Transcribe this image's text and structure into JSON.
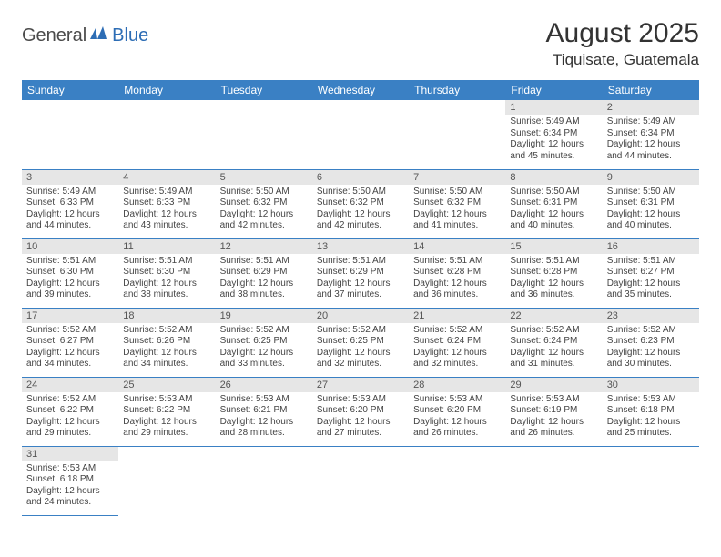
{
  "logo": {
    "part1": "General",
    "part2": "Blue"
  },
  "title": "August 2025",
  "location": "Tiquisate, Guatemala",
  "header_bg": "#3a80c4",
  "header_fg": "#ffffff",
  "daynum_bg": "#e6e6e6",
  "border_color": "#3a80c4",
  "columns": [
    "Sunday",
    "Monday",
    "Tuesday",
    "Wednesday",
    "Thursday",
    "Friday",
    "Saturday"
  ],
  "weeks": [
    [
      null,
      null,
      null,
      null,
      null,
      {
        "n": "1",
        "sr": "Sunrise: 5:49 AM",
        "ss": "Sunset: 6:34 PM",
        "dl": "Daylight: 12 hours and 45 minutes."
      },
      {
        "n": "2",
        "sr": "Sunrise: 5:49 AM",
        "ss": "Sunset: 6:34 PM",
        "dl": "Daylight: 12 hours and 44 minutes."
      }
    ],
    [
      {
        "n": "3",
        "sr": "Sunrise: 5:49 AM",
        "ss": "Sunset: 6:33 PM",
        "dl": "Daylight: 12 hours and 44 minutes."
      },
      {
        "n": "4",
        "sr": "Sunrise: 5:49 AM",
        "ss": "Sunset: 6:33 PM",
        "dl": "Daylight: 12 hours and 43 minutes."
      },
      {
        "n": "5",
        "sr": "Sunrise: 5:50 AM",
        "ss": "Sunset: 6:32 PM",
        "dl": "Daylight: 12 hours and 42 minutes."
      },
      {
        "n": "6",
        "sr": "Sunrise: 5:50 AM",
        "ss": "Sunset: 6:32 PM",
        "dl": "Daylight: 12 hours and 42 minutes."
      },
      {
        "n": "7",
        "sr": "Sunrise: 5:50 AM",
        "ss": "Sunset: 6:32 PM",
        "dl": "Daylight: 12 hours and 41 minutes."
      },
      {
        "n": "8",
        "sr": "Sunrise: 5:50 AM",
        "ss": "Sunset: 6:31 PM",
        "dl": "Daylight: 12 hours and 40 minutes."
      },
      {
        "n": "9",
        "sr": "Sunrise: 5:50 AM",
        "ss": "Sunset: 6:31 PM",
        "dl": "Daylight: 12 hours and 40 minutes."
      }
    ],
    [
      {
        "n": "10",
        "sr": "Sunrise: 5:51 AM",
        "ss": "Sunset: 6:30 PM",
        "dl": "Daylight: 12 hours and 39 minutes."
      },
      {
        "n": "11",
        "sr": "Sunrise: 5:51 AM",
        "ss": "Sunset: 6:30 PM",
        "dl": "Daylight: 12 hours and 38 minutes."
      },
      {
        "n": "12",
        "sr": "Sunrise: 5:51 AM",
        "ss": "Sunset: 6:29 PM",
        "dl": "Daylight: 12 hours and 38 minutes."
      },
      {
        "n": "13",
        "sr": "Sunrise: 5:51 AM",
        "ss": "Sunset: 6:29 PM",
        "dl": "Daylight: 12 hours and 37 minutes."
      },
      {
        "n": "14",
        "sr": "Sunrise: 5:51 AM",
        "ss": "Sunset: 6:28 PM",
        "dl": "Daylight: 12 hours and 36 minutes."
      },
      {
        "n": "15",
        "sr": "Sunrise: 5:51 AM",
        "ss": "Sunset: 6:28 PM",
        "dl": "Daylight: 12 hours and 36 minutes."
      },
      {
        "n": "16",
        "sr": "Sunrise: 5:51 AM",
        "ss": "Sunset: 6:27 PM",
        "dl": "Daylight: 12 hours and 35 minutes."
      }
    ],
    [
      {
        "n": "17",
        "sr": "Sunrise: 5:52 AM",
        "ss": "Sunset: 6:27 PM",
        "dl": "Daylight: 12 hours and 34 minutes."
      },
      {
        "n": "18",
        "sr": "Sunrise: 5:52 AM",
        "ss": "Sunset: 6:26 PM",
        "dl": "Daylight: 12 hours and 34 minutes."
      },
      {
        "n": "19",
        "sr": "Sunrise: 5:52 AM",
        "ss": "Sunset: 6:25 PM",
        "dl": "Daylight: 12 hours and 33 minutes."
      },
      {
        "n": "20",
        "sr": "Sunrise: 5:52 AM",
        "ss": "Sunset: 6:25 PM",
        "dl": "Daylight: 12 hours and 32 minutes."
      },
      {
        "n": "21",
        "sr": "Sunrise: 5:52 AM",
        "ss": "Sunset: 6:24 PM",
        "dl": "Daylight: 12 hours and 32 minutes."
      },
      {
        "n": "22",
        "sr": "Sunrise: 5:52 AM",
        "ss": "Sunset: 6:24 PM",
        "dl": "Daylight: 12 hours and 31 minutes."
      },
      {
        "n": "23",
        "sr": "Sunrise: 5:52 AM",
        "ss": "Sunset: 6:23 PM",
        "dl": "Daylight: 12 hours and 30 minutes."
      }
    ],
    [
      {
        "n": "24",
        "sr": "Sunrise: 5:52 AM",
        "ss": "Sunset: 6:22 PM",
        "dl": "Daylight: 12 hours and 29 minutes."
      },
      {
        "n": "25",
        "sr": "Sunrise: 5:53 AM",
        "ss": "Sunset: 6:22 PM",
        "dl": "Daylight: 12 hours and 29 minutes."
      },
      {
        "n": "26",
        "sr": "Sunrise: 5:53 AM",
        "ss": "Sunset: 6:21 PM",
        "dl": "Daylight: 12 hours and 28 minutes."
      },
      {
        "n": "27",
        "sr": "Sunrise: 5:53 AM",
        "ss": "Sunset: 6:20 PM",
        "dl": "Daylight: 12 hours and 27 minutes."
      },
      {
        "n": "28",
        "sr": "Sunrise: 5:53 AM",
        "ss": "Sunset: 6:20 PM",
        "dl": "Daylight: 12 hours and 26 minutes."
      },
      {
        "n": "29",
        "sr": "Sunrise: 5:53 AM",
        "ss": "Sunset: 6:19 PM",
        "dl": "Daylight: 12 hours and 26 minutes."
      },
      {
        "n": "30",
        "sr": "Sunrise: 5:53 AM",
        "ss": "Sunset: 6:18 PM",
        "dl": "Daylight: 12 hours and 25 minutes."
      }
    ],
    [
      {
        "n": "31",
        "sr": "Sunrise: 5:53 AM",
        "ss": "Sunset: 6:18 PM",
        "dl": "Daylight: 12 hours and 24 minutes."
      },
      null,
      null,
      null,
      null,
      null,
      null
    ]
  ]
}
